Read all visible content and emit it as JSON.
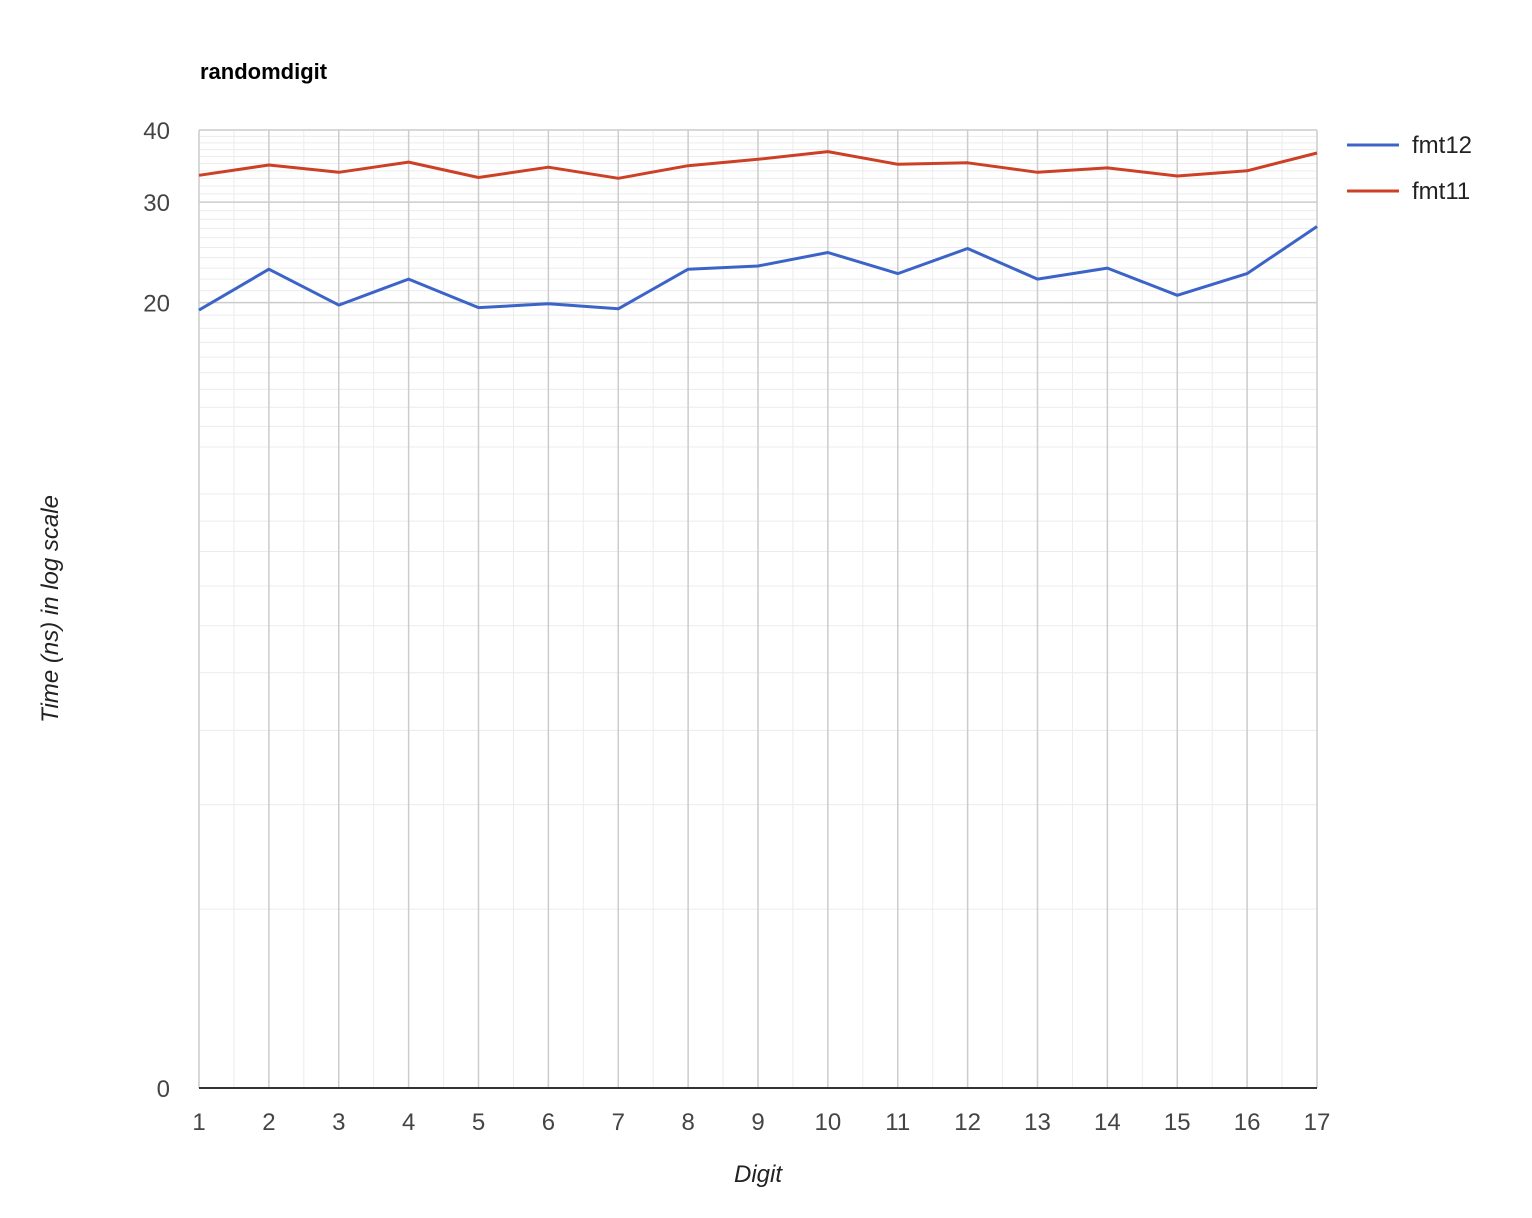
{
  "chart_data": {
    "type": "line",
    "title": "randomdigit",
    "xlabel": "Digit",
    "ylabel": "Time (ns) in log scale",
    "yscale": "log",
    "ylim": [
      0,
      40
    ],
    "y_ticks": [
      "40",
      "30",
      "20",
      "0"
    ],
    "x": [
      1,
      2,
      3,
      4,
      5,
      6,
      7,
      8,
      9,
      10,
      11,
      12,
      13,
      14,
      15,
      16,
      17
    ],
    "x_tick_labels": [
      "1",
      "2",
      "3",
      "4",
      "5",
      "6",
      "7",
      "8",
      "9",
      "10",
      "11",
      "12",
      "13",
      "14",
      "15",
      "16",
      "17"
    ],
    "grid": true,
    "legend_position": "top-right",
    "series": [
      {
        "name": "fmt12",
        "color": "#3c64c8",
        "values": [
          19.4,
          22.9,
          19.8,
          22.0,
          19.6,
          19.9,
          19.5,
          22.9,
          23.2,
          24.5,
          22.5,
          24.9,
          22.0,
          23.0,
          20.6,
          22.5,
          27.2
        ]
      },
      {
        "name": "fmt11",
        "color": "#cc4125",
        "values": [
          33.4,
          34.8,
          33.8,
          35.2,
          33.1,
          34.5,
          33.0,
          34.7,
          35.6,
          36.7,
          34.9,
          35.1,
          33.8,
          34.4,
          33.3,
          34.0,
          36.5
        ]
      }
    ]
  }
}
